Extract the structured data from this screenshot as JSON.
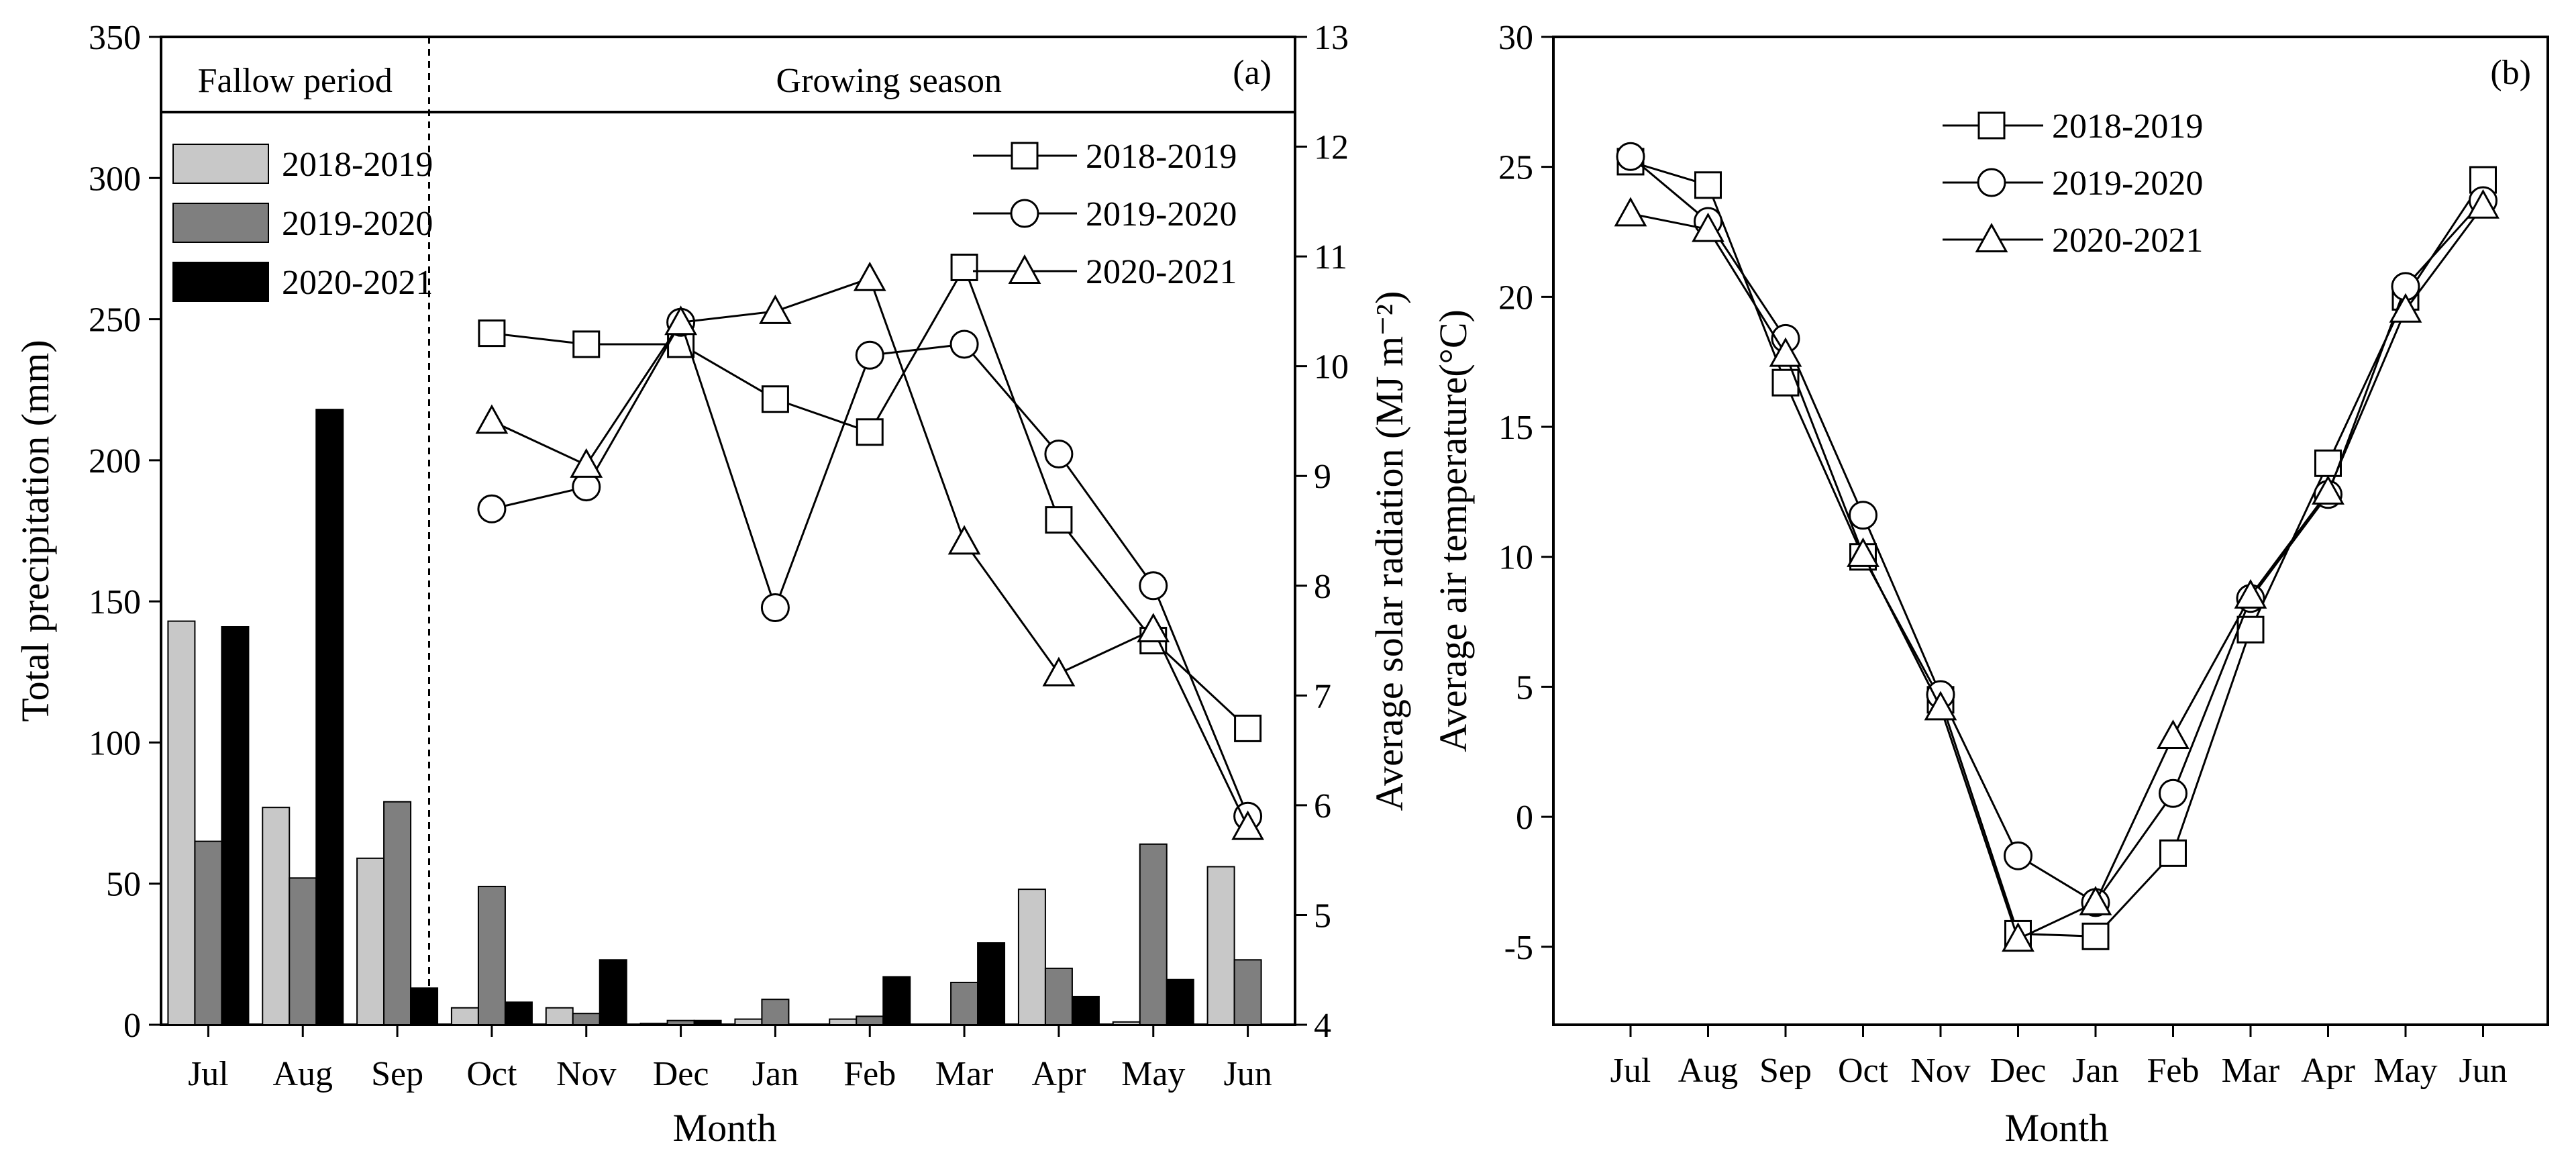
{
  "chart_data": [
    {
      "panel": "(a)",
      "type": "bar+line",
      "sections": [
        "Fallow period",
        "Growing season"
      ],
      "categories": [
        "Jul",
        "Aug",
        "Sep",
        "Oct",
        "Nov",
        "Dec",
        "Jan",
        "Feb",
        "Mar",
        "Apr",
        "May",
        "Jun"
      ],
      "xlabel": "Month",
      "ylabel": "Total precipitation (mm)",
      "ylabel2": "Average solar radiation (MJ m⁻²)",
      "ylim": [
        0,
        350
      ],
      "yticks": [
        "0",
        "50",
        "100",
        "150",
        "200",
        "250",
        "300",
        "350"
      ],
      "ylim2": [
        4,
        13
      ],
      "yticks2": [
        "4",
        "5",
        "6",
        "7",
        "8",
        "9",
        "10",
        "11",
        "12",
        "13"
      ],
      "bar_series": [
        {
          "name": "2018-2019",
          "color": "#c8c8c8",
          "values": [
            143,
            77,
            59,
            6,
            6,
            0.5,
            2,
            2,
            0,
            48,
            1,
            56
          ]
        },
        {
          "name": "2019-2020",
          "color": "#7f7f7f",
          "values": [
            65,
            52,
            79,
            49,
            4,
            1.5,
            9,
            3,
            15,
            20,
            64,
            23
          ]
        },
        {
          "name": "2020-2021",
          "color": "#000000",
          "values": [
            141,
            218,
            13,
            8,
            23,
            1.5,
            0,
            17,
            29,
            10,
            16,
            0
          ]
        }
      ],
      "line_series": [
        {
          "name": "2018-2019",
          "marker": "square",
          "x": [
            "Oct",
            "Nov",
            "Dec",
            "Jan",
            "Feb",
            "Mar",
            "Apr",
            "May",
            "Jun"
          ],
          "values": [
            10.3,
            10.2,
            10.2,
            9.7,
            9.4,
            10.9,
            8.6,
            7.5,
            6.7
          ]
        },
        {
          "name": "2019-2020",
          "marker": "circle",
          "x": [
            "Oct",
            "Nov",
            "Dec",
            "Jan",
            "Feb",
            "Mar",
            "Apr",
            "May",
            "Jun"
          ],
          "values": [
            8.7,
            8.9,
            10.4,
            7.8,
            10.1,
            10.2,
            9.2,
            8.0,
            5.9
          ]
        },
        {
          "name": "2020-2021",
          "marker": "triangle",
          "x": [
            "Oct",
            "Nov",
            "Dec",
            "Jan",
            "Feb",
            "Mar",
            "Apr",
            "May",
            "Jun"
          ],
          "values": [
            9.5,
            9.1,
            10.4,
            10.5,
            10.8,
            8.4,
            7.2,
            7.6,
            5.8
          ]
        }
      ]
    },
    {
      "panel": "(b)",
      "type": "line",
      "categories": [
        "Jul",
        "Aug",
        "Sep",
        "Oct",
        "Nov",
        "Dec",
        "Jan",
        "Feb",
        "Mar",
        "Apr",
        "May",
        "Jun"
      ],
      "xlabel": "Month",
      "ylabel": "Average air temperature(°C)",
      "ylim": [
        -8,
        30
      ],
      "yticks": [
        "-5",
        "0",
        "5",
        "10",
        "15",
        "20",
        "25",
        "30"
      ],
      "series": [
        {
          "name": "2018-2019",
          "marker": "square",
          "values": [
            25.2,
            24.3,
            16.7,
            10.0,
            4.5,
            -4.5,
            -4.6,
            -1.4,
            7.2,
            13.6,
            20.0,
            24.5
          ]
        },
        {
          "name": "2019-2020",
          "marker": "circle",
          "values": [
            25.4,
            22.9,
            18.4,
            11.6,
            4.7,
            -1.5,
            -3.3,
            0.9,
            8.4,
            12.4,
            20.4,
            23.7
          ]
        },
        {
          "name": "2020-2021",
          "marker": "triangle",
          "values": [
            23.2,
            22.6,
            17.8,
            10.1,
            4.2,
            -4.7,
            -3.3,
            3.1,
            8.5,
            12.5,
            19.5,
            23.5
          ]
        }
      ]
    }
  ]
}
